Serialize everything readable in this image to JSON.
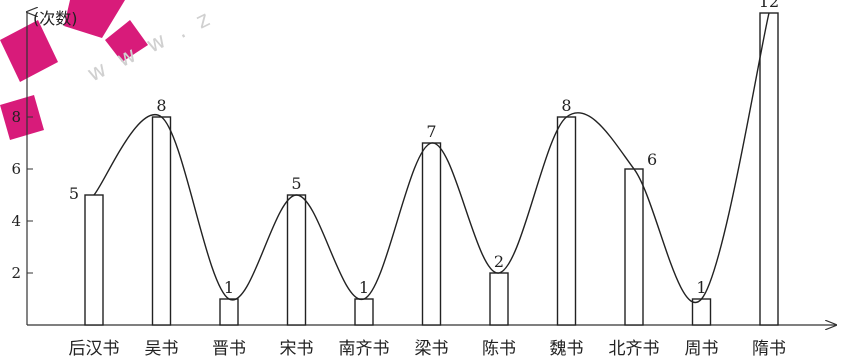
{
  "chart_data": {
    "type": "bar",
    "categories": [
      "后汉书",
      "吴书",
      "晋书",
      "宋书",
      "南齐书",
      "梁书",
      "陈书",
      "魏书",
      "北齐书",
      "周书",
      "隋书"
    ],
    "values": [
      5,
      8,
      1,
      5,
      1,
      7,
      2,
      8,
      6,
      1,
      12
    ],
    "value_labels": [
      "5",
      "8",
      "1",
      "5",
      "1",
      "7",
      "2",
      "8",
      "6",
      "1",
      "12"
    ],
    "title": "",
    "xlabel": "",
    "ylabel": "(次数)",
    "ylim": [
      0,
      12
    ],
    "yticks": [
      2,
      4,
      6,
      8
    ],
    "ytick_labels": [
      "2",
      "4",
      "6",
      "8"
    ],
    "grid": false,
    "overlay": "smooth curve through bar tops",
    "colors": {
      "bar_fill": "#ffffff",
      "bar_stroke": "#222222",
      "watermark_logo": "#d81b7a",
      "watermark_text": "#d0d0d0"
    }
  },
  "watermark": {
    "text": "w w w . z"
  }
}
